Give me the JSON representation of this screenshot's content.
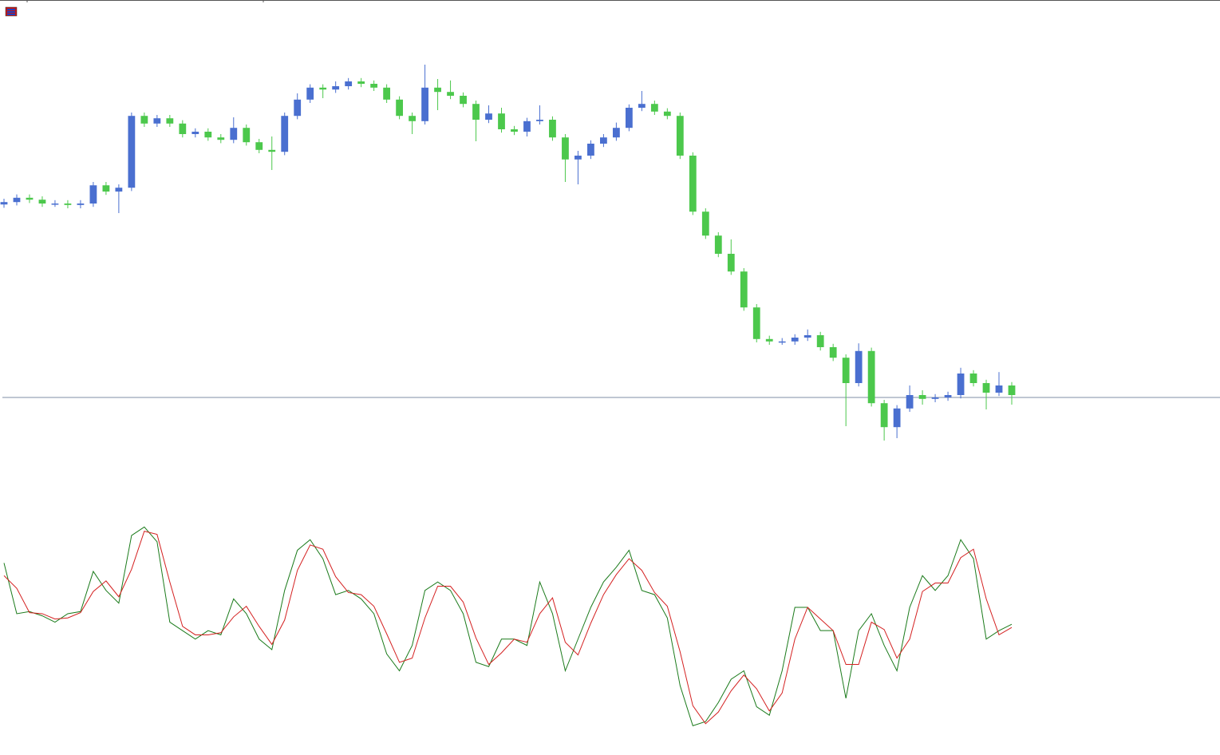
{
  "chart_data": [
    {
      "type": "candlestick",
      "up_color": "#4a6fd0",
      "down_color": "#4cc84c",
      "ylim": [
        0,
        100
      ],
      "level": 17,
      "level_color": "#7f8fa6",
      "open": [
        57.3,
        57.8,
        58.7,
        58.3,
        57.5,
        57.5,
        57.2,
        57.5,
        61.3,
        60,
        60.8,
        75.8,
        74.2,
        75.3,
        74.2,
        72,
        72.5,
        71.3,
        70.8,
        73.3,
        70.3,
        68.7,
        68.3,
        75.8,
        79.2,
        81.7,
        81.3,
        82,
        83,
        82.5,
        81.7,
        79.2,
        75.8,
        74.7,
        81.7,
        80.8,
        80,
        78.3,
        75,
        76.3,
        73,
        72.5,
        74.7,
        75,
        71.3,
        66.7,
        67.5,
        70,
        71.3,
        73.3,
        77.5,
        78.3,
        76.7,
        75.8,
        67.5,
        55.8,
        50.8,
        47,
        43.3,
        35.8,
        29.2,
        28.7,
        28.7,
        29.5,
        30,
        27.5,
        25.3,
        20,
        26.7,
        15.8,
        10.8,
        14.7,
        17.5,
        16.7,
        17,
        17.5,
        22,
        20,
        18,
        19.5
      ],
      "high": [
        58.5,
        59.4,
        59.4,
        59.0,
        58.2,
        58.2,
        58.2,
        62.0,
        62.0,
        61.5,
        76.5,
        76.5,
        76.0,
        76.0,
        74.9,
        73.2,
        73.2,
        72.0,
        75.5,
        74.0,
        71.0,
        71.5,
        76.5,
        80.5,
        82.4,
        82.4,
        83.0,
        83.7,
        83.7,
        83.2,
        82.4,
        79.9,
        76.5,
        86.5,
        83.5,
        83.2,
        80.7,
        79.0,
        78.0,
        77.5,
        73.7,
        75.4,
        78.0,
        75.7,
        72.0,
        68.5,
        70.7,
        72.0,
        74.4,
        78.2,
        81.0,
        79.0,
        77.4,
        76.5,
        68.2,
        56.5,
        51.5,
        50.0,
        44.0,
        36.5,
        29.9,
        29.4,
        30.2,
        31.2,
        30.7,
        28.2,
        26.0,
        28.3,
        27.4,
        16.5,
        15.4,
        19.5,
        18.5,
        17.7,
        18.2,
        23.2,
        22.7,
        20.7,
        22.3,
        20.2
      ],
      "low": [
        56.6,
        57.1,
        57.6,
        56.8,
        56.8,
        56.5,
        56.5,
        56.8,
        59.3,
        55.5,
        60.1,
        73.5,
        73.5,
        73.5,
        71.3,
        71.3,
        70.6,
        70.1,
        70.1,
        69.6,
        68.0,
        64.5,
        67.6,
        75.1,
        78.5,
        79.5,
        80.6,
        81.3,
        81.8,
        81.0,
        78.5,
        75.1,
        72.0,
        74.0,
        77.0,
        79.3,
        77.6,
        70.5,
        74.3,
        72.3,
        71.8,
        71.5,
        74.0,
        70.6,
        62.0,
        61.5,
        66.8,
        69.3,
        70.6,
        72.6,
        76.8,
        76.0,
        75.1,
        66.8,
        55.1,
        50.1,
        46.3,
        42.6,
        35.1,
        28.5,
        28.0,
        28.0,
        28.0,
        28.8,
        26.8,
        24.6,
        11.0,
        19.3,
        15.1,
        8.0,
        8.5,
        14.0,
        15.5,
        16.0,
        16.3,
        16.8,
        19.3,
        14.5,
        17.3,
        15.5
      ],
      "close": [
        57.8,
        58.7,
        58.3,
        57.5,
        57.5,
        57.2,
        57.5,
        61.3,
        60,
        60.8,
        75.8,
        74.2,
        75.3,
        74.2,
        72,
        72.5,
        71.3,
        70.8,
        73.3,
        70.3,
        68.7,
        68.3,
        75.8,
        79.2,
        81.7,
        81.3,
        82,
        83,
        82.5,
        81.7,
        79.2,
        75.8,
        74.7,
        81.7,
        80.8,
        80,
        78.3,
        75,
        76.3,
        73,
        72.5,
        74.7,
        75,
        71.3,
        66.7,
        67.5,
        70,
        71.3,
        73.3,
        77.5,
        78.3,
        76.7,
        75.8,
        67.5,
        55.8,
        50.8,
        47,
        43.3,
        35.8,
        29.2,
        28.7,
        28.7,
        29.5,
        30,
        27.5,
        25.3,
        20,
        26.7,
        15.8,
        10.8,
        14.7,
        17.5,
        16.7,
        17,
        17.5,
        22,
        20,
        18,
        19.5,
        17.5
      ]
    },
    {
      "type": "line",
      "ylim": [
        0,
        100
      ],
      "series": [
        {
          "color": "#1a7a1a",
          "values": [
            81,
            57,
            58,
            56,
            53,
            57,
            58,
            77,
            68,
            62,
            94,
            98,
            91,
            53,
            49,
            45,
            49,
            47,
            64,
            57,
            45,
            40,
            68,
            87,
            92,
            83,
            66,
            68,
            64,
            57,
            38,
            30,
            42,
            68,
            72,
            68,
            57,
            34,
            32,
            45,
            45,
            42,
            72,
            57,
            30,
            45,
            60,
            72,
            79,
            87,
            68,
            66,
            55,
            23,
            4,
            6,
            15,
            26,
            30,
            13,
            9,
            30,
            60,
            60,
            49,
            49,
            17,
            49,
            57,
            42,
            30,
            60,
            75,
            68,
            75,
            92,
            83,
            45,
            49,
            52
          ]
        },
        {
          "color": "#d42020",
          "values": [
            75,
            69,
            57.5,
            57,
            54.5,
            55,
            57.5,
            67.5,
            72.5,
            65,
            78,
            96,
            94.5,
            72,
            51,
            47,
            47,
            48,
            55.5,
            60.5,
            51,
            42.5,
            54,
            77.5,
            89.5,
            87.5,
            74.5,
            67,
            66,
            60.5,
            47.5,
            34,
            36,
            55,
            70,
            70,
            62.5,
            45.5,
            33,
            38.5,
            45,
            43.5,
            57,
            64.5,
            43.5,
            37.5,
            52.5,
            66,
            75.5,
            83,
            77.5,
            67,
            60.5,
            39,
            13.5,
            5,
            10.5,
            20.5,
            28,
            21.5,
            11,
            19.5,
            45,
            60,
            54.5,
            49,
            33,
            33,
            53,
            49.5,
            36,
            45,
            67.5,
            71.5,
            71.5,
            83.5,
            87.5,
            64,
            47,
            50.5
          ]
        }
      ]
    }
  ]
}
